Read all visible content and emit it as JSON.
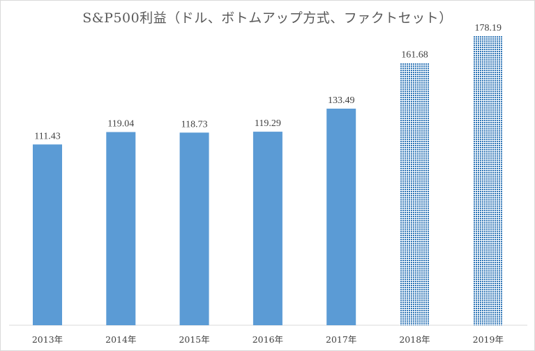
{
  "chart_data": {
    "type": "bar",
    "title": "S&P500利益（ドル、ボトムアップ方式、ファクトセット）",
    "categories": [
      "2013年",
      "2014年",
      "2015年",
      "2016年",
      "2017年",
      "2018年",
      "2019年"
    ],
    "values": [
      111.43,
      119.04,
      118.73,
      119.29,
      133.49,
      161.68,
      178.19
    ],
    "value_labels": [
      "111.43",
      "119.04",
      "118.73",
      "119.29",
      "133.49",
      "161.68",
      "178.19"
    ],
    "bar_styles": [
      "solid",
      "solid",
      "solid",
      "solid",
      "solid",
      "dotted",
      "dotted"
    ],
    "ylim": [
      0,
      200
    ],
    "grid": false,
    "colors": {
      "bar": "#5b9bd5",
      "pattern_dot": "#2e75b6",
      "axis": "#d9d9d9"
    }
  }
}
